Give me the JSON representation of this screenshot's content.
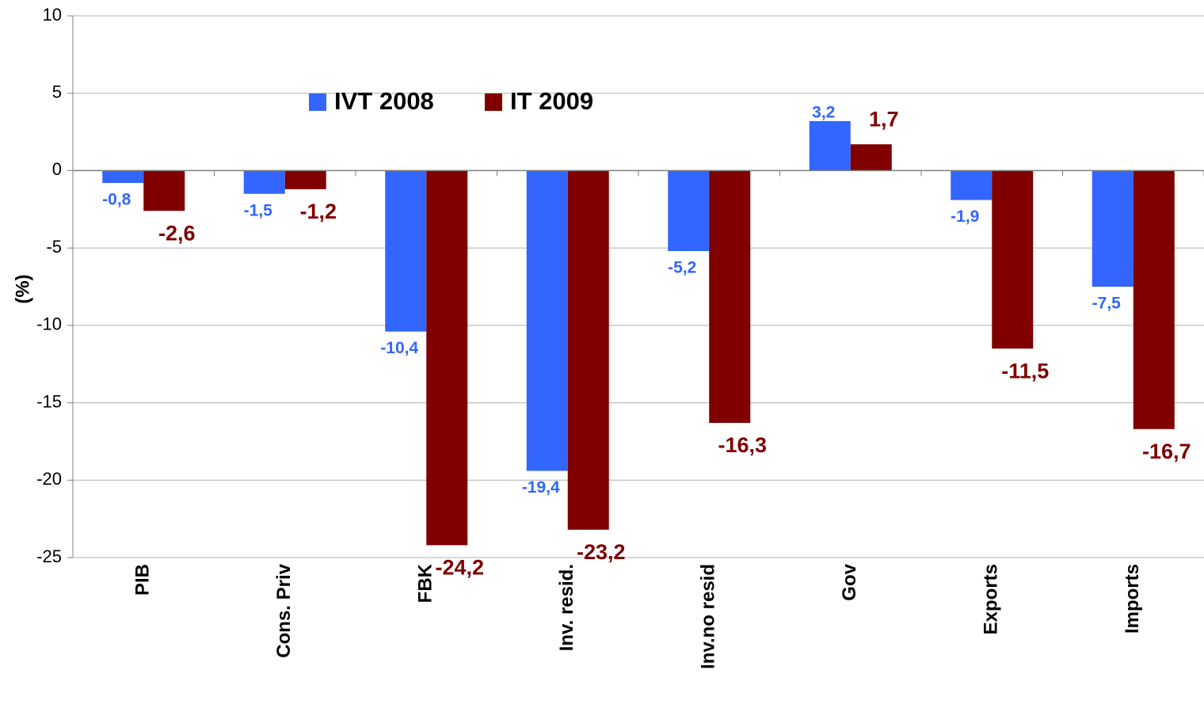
{
  "chart_data": {
    "type": "bar",
    "y_label": "(%)",
    "categories": [
      "PIB",
      "Cons. Priv",
      "FBK",
      "Inv. resid.",
      "Inv.no resid",
      "Gov",
      "Exports",
      "Imports"
    ],
    "series": [
      {
        "name": "IVT 2008",
        "color": "#3366ff",
        "values": [
          -0.8,
          -1.5,
          -10.4,
          -19.4,
          -5.2,
          3.2,
          -1.9,
          -7.5
        ],
        "value_labels": [
          "-0,8",
          "-1,5",
          "-10,4",
          "-19,4",
          "-5,2",
          "3,2",
          "-1,9",
          "-7,5"
        ]
      },
      {
        "name": "IT 2009",
        "color": "#800000",
        "values": [
          -2.6,
          -1.2,
          -24.2,
          -23.2,
          -16.3,
          1.7,
          -11.5,
          -16.7
        ],
        "value_labels": [
          "-2,6",
          "-1,2",
          "-24,2",
          "-23,2",
          "-16,3",
          "1,7",
          "-11,5",
          "-16,7"
        ]
      }
    ],
    "ylim": [
      -25,
      10
    ],
    "yticks": [
      -25,
      -20,
      -15,
      -10,
      -5,
      0,
      5,
      10
    ],
    "grid": true
  }
}
